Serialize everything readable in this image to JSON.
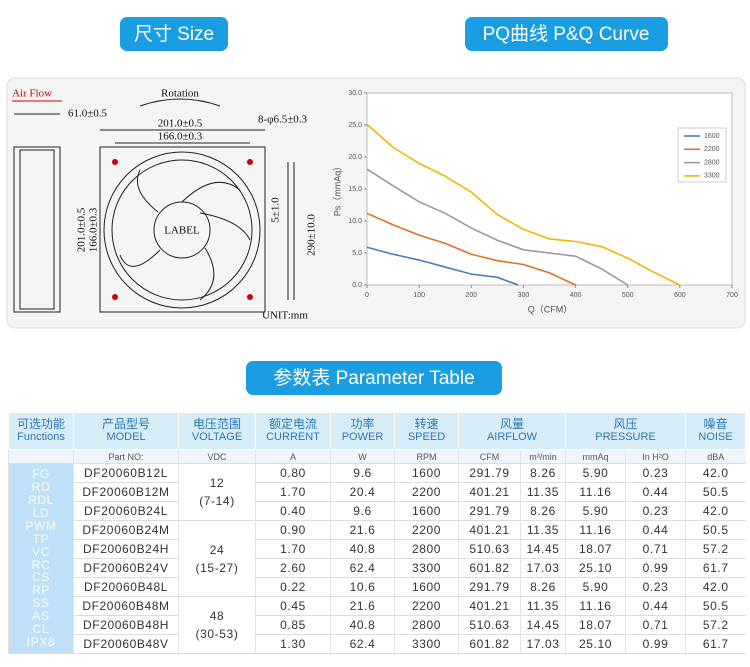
{
  "headings": {
    "size": "尺寸 Size",
    "curve": "PQ曲线 P&Q Curve",
    "table": "参数表 Parameter Table"
  },
  "drawing": {
    "air_flow": "Air Flow",
    "rotation": "Rotation",
    "depth": "61.0±0.5",
    "outer_width": "201.0±0.5",
    "hole_width": "166.0±0.3",
    "holes": "8-φ6.5±0.3",
    "outer_height": "201.0±0.5",
    "hole_height": "166.0±0.3",
    "label": "LABEL",
    "strip": "5±1.0",
    "lead": "290±10.0",
    "unit": "UNIT:mm"
  },
  "chart_data": {
    "type": "line",
    "x_label": "Q（CFM）",
    "y_label": "Ps（mmAq）",
    "xlim": [
      0,
      700
    ],
    "xticks": [
      0,
      100,
      200,
      300,
      400,
      500,
      600,
      700
    ],
    "ylim": [
      0,
      30
    ],
    "yticks": [
      {
        "value": 0,
        "label": "0.0"
      },
      {
        "value": 5,
        "label": "5.0"
      },
      {
        "value": 10,
        "label": "10.0"
      },
      {
        "value": 15,
        "label": "15.0"
      },
      {
        "value": 20,
        "label": "20.0"
      },
      {
        "value": 25,
        "label": "25.0"
      },
      {
        "value": 30,
        "label": "30.0"
      }
    ],
    "series": [
      {
        "name": "1600",
        "color": "#4a7ebb",
        "x": [
          0,
          50,
          100,
          150,
          200,
          250,
          290
        ],
        "values": [
          5.9,
          4.8,
          3.9,
          2.8,
          1.7,
          1.2,
          0
        ]
      },
      {
        "name": "2200",
        "color": "#e0702a",
        "x": [
          0,
          50,
          100,
          150,
          200,
          250,
          300,
          350,
          400
        ],
        "values": [
          11.2,
          9.4,
          7.8,
          6.5,
          4.8,
          3.8,
          3.2,
          1.9,
          0
        ]
      },
      {
        "name": "2800",
        "color": "#9a9a9a",
        "x": [
          0,
          50,
          100,
          150,
          200,
          250,
          300,
          350,
          400,
          450,
          500
        ],
        "values": [
          18.1,
          15.5,
          13.0,
          11.2,
          8.9,
          7.0,
          5.5,
          5.0,
          4.5,
          2.5,
          0
        ]
      },
      {
        "name": "3300",
        "color": "#f4b400",
        "x": [
          0,
          50,
          100,
          150,
          200,
          250,
          300,
          350,
          400,
          450,
          500,
          550,
          600
        ],
        "values": [
          25.1,
          21.5,
          19.0,
          17.0,
          14.5,
          11.0,
          8.7,
          7.2,
          6.8,
          6.0,
          4.2,
          2.0,
          0
        ]
      }
    ]
  },
  "table": {
    "header": [
      [
        "可选功能",
        "Functions"
      ],
      [
        "产品型号",
        "MODEL"
      ],
      [
        "电压范围",
        "VOLTAGE"
      ],
      [
        "额定电流",
        "CURRENT"
      ],
      [
        "功率",
        "POWER"
      ],
      [
        "转速",
        "SPEED"
      ],
      [
        "风量",
        "AIRFLOW"
      ],
      [
        "风压",
        "PRESSURE"
      ],
      [
        "噪音",
        "NOISE"
      ]
    ],
    "subheader": [
      "Part NO:",
      "VDC",
      "A",
      "W",
      "RPM",
      "CFM",
      "m³/min",
      "mmAq",
      "In H²O",
      "dBA"
    ],
    "functions": [
      "FG",
      "RD",
      "RDL",
      "LD",
      "PWM",
      "TP",
      "VC",
      "RC",
      "CS",
      "RP",
      "SS",
      "AS",
      "CL",
      "IPX8"
    ],
    "voltage": [
      [
        "12",
        "(7-14)"
      ],
      [
        "24",
        "(15-27)"
      ],
      [
        "48",
        "(30-53)"
      ]
    ],
    "rows": [
      [
        "DF20060B12L",
        "0.80",
        "9.6",
        "1600",
        "291.79",
        "8.26",
        "5.90",
        "0.23",
        "42.0"
      ],
      [
        "DF20060B12M",
        "1.70",
        "20.4",
        "2200",
        "401.21",
        "11.35",
        "11.16",
        "0.44",
        "50.5"
      ],
      [
        "DF20060B24L",
        "0.40",
        "9.6",
        "1600",
        "291.79",
        "8.26",
        "5.90",
        "0.23",
        "42.0"
      ],
      [
        "DF20060B24M",
        "0.90",
        "21.6",
        "2200",
        "401.21",
        "11.35",
        "11.16",
        "0.44",
        "50.5"
      ],
      [
        "DF20060B24H",
        "1.70",
        "40.8",
        "2800",
        "510.63",
        "14.45",
        "18.07",
        "0.71",
        "57.2"
      ],
      [
        "DF20060B24V",
        "2.60",
        "62.4",
        "3300",
        "601.82",
        "17.03",
        "25.10",
        "0.99",
        "61.7"
      ],
      [
        "DF20060B48L",
        "0.22",
        "10.6",
        "1600",
        "291.79",
        "8.26",
        "5.90",
        "0.23",
        "42.0"
      ],
      [
        "DF20060B48M",
        "0.45",
        "21.6",
        "2200",
        "401.21",
        "11.35",
        "11.16",
        "0.44",
        "50.5"
      ],
      [
        "DF20060B48H",
        "0.85",
        "40.8",
        "2800",
        "510.63",
        "14.45",
        "18.07",
        "0.71",
        "57.2"
      ],
      [
        "DF20060B48V",
        "1.30",
        "62.4",
        "3300",
        "601.82",
        "17.03",
        "25.10",
        "0.99",
        "61.7"
      ]
    ]
  }
}
